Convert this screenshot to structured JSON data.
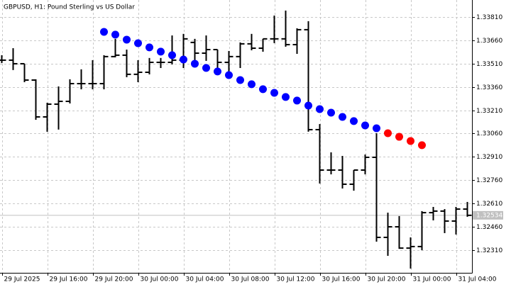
{
  "chart_data": {
    "type": "ohlc",
    "title": "GBPUSD, H1:  Pound Sterling vs US Dollar",
    "categories": [
      "29 Jul 2025",
      null,
      null,
      null,
      "29 Jul 16:00",
      null,
      null,
      null,
      "29 Jul 20:00",
      null,
      null,
      null,
      "30 Jul 00:00",
      null,
      null,
      null,
      "30 Jul 04:00",
      null,
      null,
      null,
      "30 Jul 08:00",
      null,
      null,
      null,
      "30 Jul 12:00",
      null,
      null,
      null,
      "30 Jul 16:00",
      null,
      null,
      null,
      "30 Jul 20:00",
      null,
      null,
      null,
      "31 Jul 00:00",
      null,
      null,
      null,
      "31 Jul 04:00",
      null
    ],
    "ohlc": {
      "color": "#000000",
      "open": [
        1.33532,
        1.33532,
        1.33509,
        1.33404,
        1.33167,
        1.33249,
        1.33267,
        1.33381,
        1.33381,
        1.33381,
        1.33555,
        1.33564,
        1.33441,
        1.33454,
        1.33518,
        1.33518,
        1.33532,
        1.33646,
        1.33577,
        1.336,
        1.33518,
        1.33555,
        1.33637,
        1.33609,
        1.33669,
        1.33669,
        1.33632,
        1.33728,
        1.33085,
        1.32825,
        1.32825,
        1.32734,
        1.32825,
        1.32907,
        1.32392,
        1.3246,
        1.32323,
        1.32333,
        1.32551,
        1.32561,
        1.32497,
        1.32574
      ],
      "high": [
        1.33564,
        1.33609,
        1.33509,
        1.33409,
        1.33258,
        1.33363,
        1.33409,
        1.33473,
        1.33532,
        1.33564,
        1.33669,
        1.336,
        1.33532,
        1.33546,
        1.33546,
        1.33691,
        1.33701,
        1.33669,
        1.33691,
        1.336,
        1.33591,
        1.33646,
        1.33701,
        1.33669,
        1.33819,
        1.33851,
        1.33737,
        1.33783,
        1.33121,
        1.32939,
        1.32916,
        1.32825,
        1.32925,
        1.33062,
        1.32551,
        1.32529,
        1.32392,
        1.32561,
        1.32588,
        1.32574,
        1.32588,
        1.3262
      ],
      "low": [
        1.33518,
        1.33473,
        1.33395,
        1.33153,
        1.33076,
        1.3309,
        1.33258,
        1.33349,
        1.33349,
        1.33349,
        1.33555,
        1.33427,
        1.33395,
        1.33445,
        1.33486,
        1.33509,
        1.33486,
        1.33509,
        1.33532,
        1.33463,
        1.33418,
        1.33486,
        1.336,
        1.33591,
        1.33646,
        1.33623,
        1.33577,
        1.33076,
        1.32743,
        1.32802,
        1.32711,
        1.32697,
        1.32802,
        1.32369,
        1.32278,
        1.32323,
        1.32196,
        1.32314,
        1.32506,
        1.32424,
        1.32415,
        1.32529
      ],
      "close": [
        1.33532,
        1.33509,
        1.33404,
        1.33167,
        1.33249,
        1.33267,
        1.33381,
        1.33381,
        1.33381,
        1.33555,
        1.33564,
        1.33441,
        1.33454,
        1.33518,
        1.33518,
        1.33532,
        1.33669,
        1.33577,
        1.336,
        1.33518,
        1.33555,
        1.33637,
        1.33609,
        1.33669,
        1.33669,
        1.33632,
        1.33728,
        1.33085,
        1.32825,
        1.32825,
        1.32734,
        1.32825,
        1.32907,
        1.32392,
        1.3246,
        1.32323,
        1.32333,
        1.32551,
        1.32561,
        1.32497,
        1.32574,
        1.32534
      ]
    },
    "series": [
      {
        "color": "#0000ff",
        "values": [
          null,
          null,
          null,
          null,
          null,
          null,
          null,
          null,
          null,
          1.33714,
          1.33696,
          1.33664,
          1.33641,
          1.33614,
          1.33587,
          1.33564,
          1.33536,
          1.33509,
          1.33482,
          1.33459,
          1.33436,
          1.33404,
          1.33377,
          1.33345,
          1.33322,
          1.33295,
          1.33272,
          1.3324,
          1.33217,
          1.33194,
          1.33167,
          1.3314,
          1.33112,
          1.33094,
          null,
          null,
          null,
          null,
          null,
          null,
          null,
          null
        ]
      },
      {
        "color": "#ff0000",
        "values": [
          null,
          null,
          null,
          null,
          null,
          null,
          null,
          null,
          null,
          null,
          null,
          null,
          null,
          null,
          null,
          null,
          null,
          null,
          null,
          null,
          null,
          null,
          null,
          null,
          null,
          null,
          null,
          null,
          null,
          null,
          null,
          null,
          null,
          null,
          1.33062,
          1.33039,
          1.33012,
          1.32985,
          null,
          null,
          null,
          null
        ]
      }
    ],
    "ylim": [
      1.32164,
      1.33919
    ],
    "yticks": [
      {
        "value": 1.3381,
        "label": "1.33810"
      },
      {
        "value": 1.3366,
        "label": "1.33660"
      },
      {
        "value": 1.3351,
        "label": "1.33510"
      },
      {
        "value": 1.3336,
        "label": "1.33360"
      },
      {
        "value": 1.3321,
        "label": "1.33210"
      },
      {
        "value": 1.3306,
        "label": "1.33060"
      },
      {
        "value": 1.3291,
        "label": "1.32910"
      },
      {
        "value": 1.3276,
        "label": "1.32760"
      },
      {
        "value": 1.3261,
        "label": "1.32610"
      },
      {
        "value": 1.3246,
        "label": "1.32460"
      },
      {
        "value": 1.3231,
        "label": "1.32310"
      }
    ],
    "last_price": 1.32534,
    "grid": true
  }
}
